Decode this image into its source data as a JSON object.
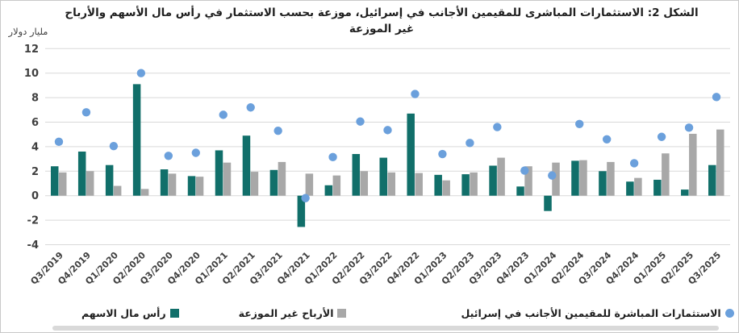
{
  "title": {
    "line1": "الشكل 2: الاستثمارات المباشرى للمقيمين الأجانب في إسرائيل، موزعة بحسب الاستثمار في رأس مال الأسهم والأرباح",
    "line2": "غير الموزعة"
  },
  "y_axis": {
    "unit_label": "مليار دولار",
    "ticks": [
      12,
      10,
      8,
      6,
      4,
      2,
      0,
      -2,
      -4
    ],
    "min": -4,
    "max": 12
  },
  "legend": [
    {
      "label": "رأس مال الاسهم",
      "marker": "square",
      "color": "#116f6a"
    },
    {
      "label": "الأرباح غير الموزعة",
      "marker": "square",
      "color": "#a8a8a8"
    },
    {
      "label": "الاستثمارات المباشرة للمقيمين الأجانب في إسرائيل",
      "marker": "circle",
      "color": "#6ba0dc"
    }
  ],
  "colors": {
    "grid": "#d9d9d9",
    "axis_text": "#3f3f3f"
  },
  "chart_data": {
    "type": "bar",
    "title": "الشكل 2: الاستثمارات المباشرى للمقيمين الأجانب في إسرائيل، موزعة بحسب الاستثمار في رأس مال الأسهم والأرباح غير الموزعة",
    "xlabel": "",
    "ylabel": "مليار دولار",
    "ylim": [
      -4,
      12
    ],
    "grid": true,
    "legend_position": "bottom",
    "categories": [
      "Q3/2019",
      "Q4/2019",
      "Q1/2020",
      "Q2/2020",
      "Q3/2020",
      "Q4/2020",
      "Q1/2021",
      "Q2/2021",
      "Q3/2021",
      "Q4/2021",
      "Q1/2022",
      "Q2/2022",
      "Q3/2022",
      "Q4/2022",
      "Q1/2023",
      "Q2/2023",
      "Q3/2023",
      "Q4/2023",
      "Q1/2024",
      "Q2/2024",
      "Q3/2024",
      "Q4/2024",
      "Q1/2025",
      "Q2/2025",
      "Q3/2025"
    ],
    "series": [
      {
        "name": "رأس مال الاسهم",
        "render": "bar",
        "color": "#116f6a",
        "values": [
          2.4,
          3.6,
          2.5,
          9.1,
          2.15,
          1.6,
          3.7,
          4.9,
          2.1,
          -2.55,
          0.85,
          3.4,
          3.1,
          6.7,
          1.7,
          1.75,
          2.45,
          0.75,
          -1.25,
          2.85,
          2.0,
          1.15,
          1.3,
          0.5,
          2.5
        ]
      },
      {
        "name": "الأرباح غير الموزعة",
        "render": "bar",
        "color": "#a8a8a8",
        "values": [
          1.9,
          2.0,
          0.8,
          0.55,
          1.8,
          1.55,
          2.7,
          1.95,
          2.75,
          1.8,
          1.65,
          2.0,
          1.9,
          1.85,
          1.25,
          1.9,
          3.1,
          2.4,
          2.7,
          2.9,
          2.75,
          1.45,
          3.45,
          5.05,
          5.4
        ]
      },
      {
        "name": "الاستثمارات المباشرة للمقيمين الأجانب في إسرائيل",
        "render": "scatter",
        "color": "#6ba0dc",
        "values": [
          4.4,
          6.8,
          4.05,
          10.0,
          3.25,
          3.5,
          6.6,
          7.2,
          5.3,
          -0.2,
          3.15,
          6.05,
          5.35,
          8.3,
          3.4,
          4.3,
          5.6,
          2.05,
          1.65,
          5.85,
          4.6,
          2.65,
          4.8,
          5.55,
          8.05
        ]
      }
    ]
  }
}
